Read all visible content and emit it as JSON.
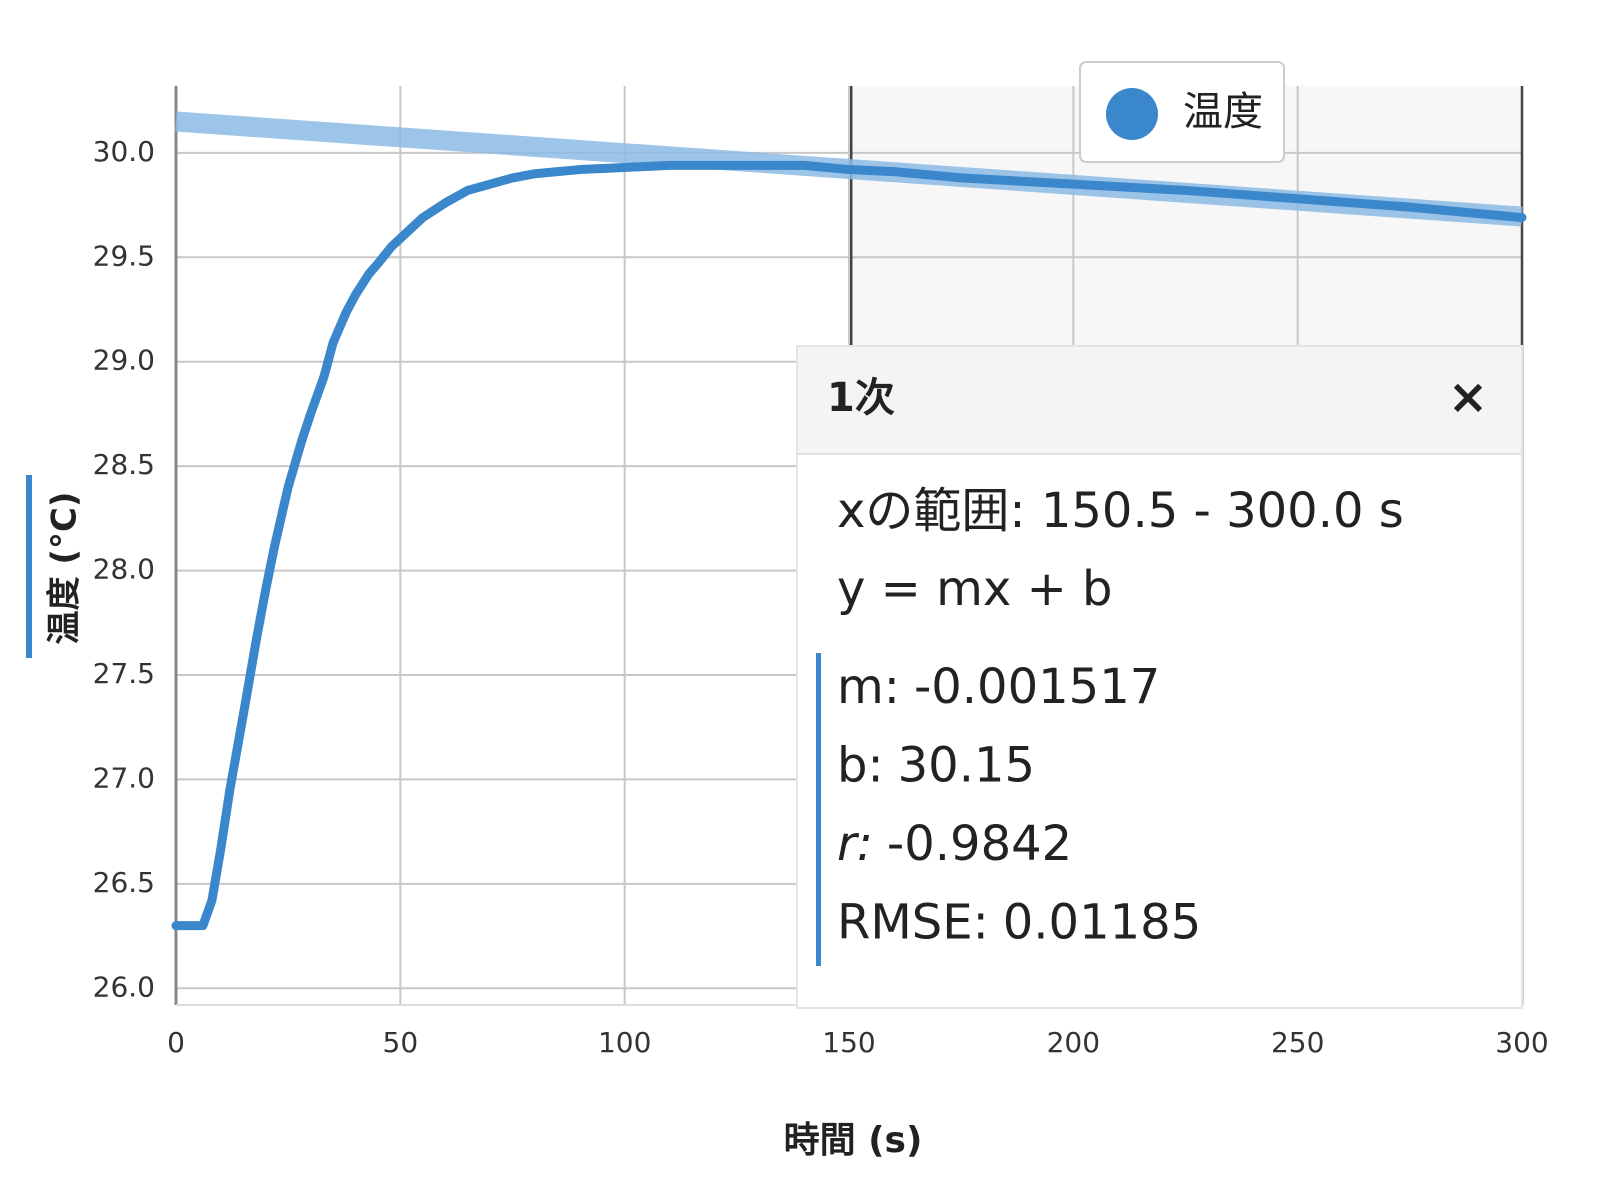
{
  "chart_data": {
    "type": "line",
    "x_label": "時間 (s)",
    "y_label": "温度 (°C)",
    "x": [
      0,
      3,
      6,
      8,
      10,
      12,
      15,
      18,
      20,
      22,
      25,
      28,
      30,
      33,
      35,
      38,
      40,
      43,
      45,
      48,
      50,
      55,
      60,
      65,
      70,
      75,
      80,
      90,
      100,
      110,
      120,
      130,
      140,
      150,
      160,
      175,
      200,
      225,
      250,
      275,
      300
    ],
    "series": [
      {
        "name": "温度",
        "color": "#3a87cc",
        "values": [
          26.3,
          26.3,
          26.3,
          26.42,
          26.67,
          26.95,
          27.31,
          27.68,
          27.91,
          28.12,
          28.4,
          28.62,
          28.75,
          28.93,
          29.09,
          29.24,
          29.32,
          29.42,
          29.47,
          29.55,
          29.59,
          29.69,
          29.76,
          29.82,
          29.85,
          29.88,
          29.9,
          29.92,
          29.93,
          29.94,
          29.94,
          29.94,
          29.94,
          29.92,
          29.91,
          29.88,
          29.85,
          29.82,
          29.78,
          29.74,
          29.69
        ]
      }
    ],
    "xlim": [
      0,
      300
    ],
    "xticks": [
      0,
      50,
      100,
      150,
      200,
      250,
      300
    ],
    "ylim": [
      25.92,
      30.32
    ],
    "yticks": [
      {
        "value": 26,
        "label": "26.0"
      },
      {
        "value": 26.5,
        "label": "26.5"
      },
      {
        "value": 27,
        "label": "27.0"
      },
      {
        "value": 27.5,
        "label": "27.5"
      },
      {
        "value": 28,
        "label": "28.0"
      },
      {
        "value": 28.5,
        "label": "28.5"
      },
      {
        "value": 29,
        "label": "29.0"
      },
      {
        "value": 29.5,
        "label": "29.5"
      },
      {
        "value": 30,
        "label": "30.0"
      }
    ],
    "grid": true,
    "fit_range": [
      150.5,
      300
    ],
    "fit_color": "#8cbbe6"
  },
  "fit_panel": {
    "title": "1次",
    "close": "×",
    "range_text": "xの範囲: 150.5 - 300.0 s",
    "equation": "y = mx + b",
    "params": [
      {
        "label": "m:",
        "value": -0.001517
      },
      {
        "label": "b:",
        "value": 30.15
      },
      {
        "label": "r:",
        "value": -0.9842
      },
      {
        "label": "RMSE:",
        "value": 0.01185
      }
    ]
  }
}
